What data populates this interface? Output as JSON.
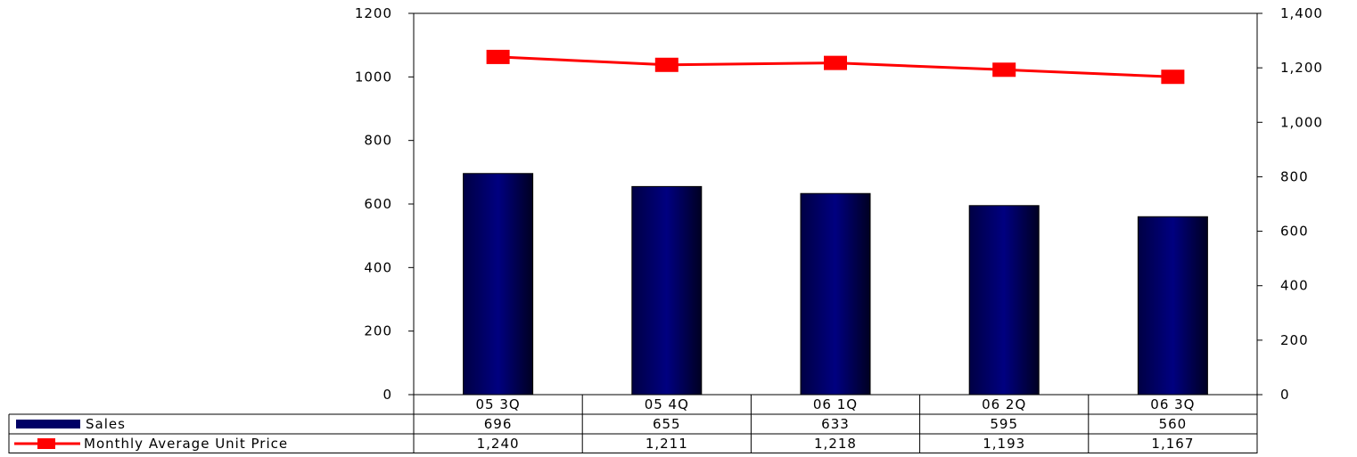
{
  "chart_data": {
    "type": "bar",
    "categories": [
      "05 3Q",
      "05 4Q",
      "06 1Q",
      "06 2Q",
      "06 3Q"
    ],
    "series": [
      {
        "name": "Sales",
        "kind": "bar",
        "axis": "left",
        "color": "#000066",
        "values": [
          696,
          655,
          633,
          595,
          560
        ],
        "labels": [
          "696",
          "655",
          "633",
          "595",
          "560"
        ]
      },
      {
        "name": "Monthly Average Unit Price",
        "kind": "line",
        "axis": "right",
        "color": "#ff0000",
        "marker": "square",
        "values": [
          1240,
          1211,
          1218,
          1193,
          1167
        ],
        "labels": [
          "1,240",
          "1,211",
          "1,218",
          "1,193",
          "1,167"
        ]
      }
    ],
    "y_left": {
      "ylim": [
        0,
        1200
      ],
      "ticks": [
        "0",
        "200",
        "400",
        "600",
        "800",
        "1000",
        "1200"
      ]
    },
    "y_right": {
      "ylim": [
        0,
        1400
      ],
      "ticks": [
        "0",
        "200",
        "400",
        "600",
        "800",
        "1,000",
        "1,200",
        "1,400"
      ]
    },
    "grid": false,
    "legend": "data-table-bottom"
  }
}
